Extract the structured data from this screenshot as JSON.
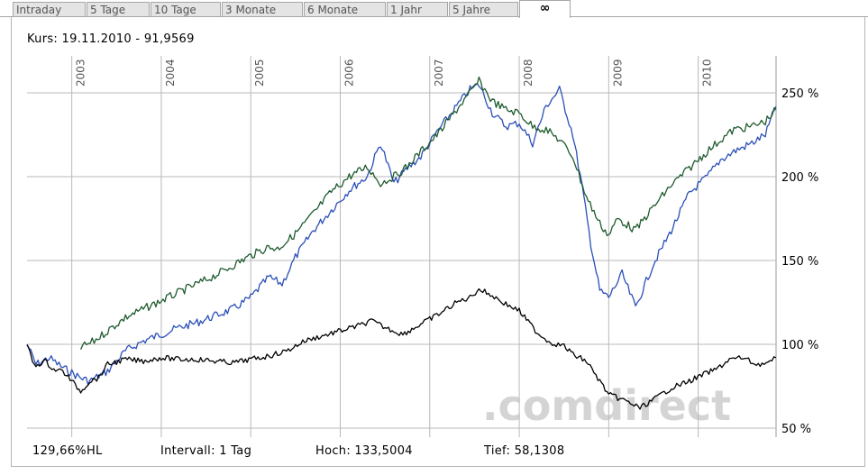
{
  "tabs": [
    {
      "label": "Intraday",
      "active": false
    },
    {
      "label": "5 Tage",
      "active": false
    },
    {
      "label": "10 Tage",
      "active": false
    },
    {
      "label": "3 Monate",
      "active": false
    },
    {
      "label": "6 Monate",
      "active": false
    },
    {
      "label": "1 Jahr",
      "active": false
    },
    {
      "label": "5 Jahre",
      "active": false
    },
    {
      "label": "∞",
      "active": true
    }
  ],
  "header": {
    "kurs": "Kurs: 19.11.2010 - 91,9569"
  },
  "footer": {
    "hl": "129,66%HL",
    "intervall": "Intervall: 1 Tag",
    "hoch": "Hoch: 133,5004",
    "tief": "Tief: 58,1308"
  },
  "watermark": ".comdirect",
  "colors": {
    "main": "#000000",
    "green": "#1e5a2e",
    "blue": "#2b4fb8",
    "grid": "#b9b9b9",
    "frame": "#b5b5b5"
  },
  "chart_data": {
    "type": "line",
    "x_tick_labels": [
      "2003",
      "2004",
      "2005",
      "2006",
      "2007",
      "2008",
      "2009",
      "2010"
    ],
    "y_tick_labels": [
      "250 %",
      "200 %",
      "150 %",
      "100 %",
      "50 %"
    ],
    "y_ticks": [
      250,
      200,
      150,
      100,
      50
    ],
    "ylim": [
      50,
      270
    ],
    "xlim": [
      2002.5,
      2010.87
    ],
    "grid": true,
    "series": [
      {
        "color": "#000000",
        "x": [
          2002.5,
          2002.58,
          2002.7,
          2002.8,
          2002.9,
          2003.0,
          2003.1,
          2003.2,
          2003.3,
          2003.4,
          2003.6,
          2003.8,
          2004.0,
          2004.2,
          2004.4,
          2004.6,
          2004.8,
          2005.0,
          2005.2,
          2005.4,
          2005.6,
          2005.8,
          2006.0,
          2006.2,
          2006.35,
          2006.5,
          2006.7,
          2006.9,
          2007.1,
          2007.3,
          2007.45,
          2007.55,
          2007.7,
          2007.85,
          2008.0,
          2008.2,
          2008.35,
          2008.5,
          2008.6,
          2008.75,
          2008.9,
          2009.0,
          2009.1,
          2009.2,
          2009.35,
          2009.5,
          2009.7,
          2009.9,
          2010.1,
          2010.2,
          2010.35,
          2010.5,
          2010.65,
          2010.8,
          2010.87
        ],
        "values": [
          100,
          87,
          90,
          85,
          84,
          78,
          72,
          78,
          80,
          88,
          91,
          90,
          92,
          91,
          91,
          90,
          89,
          91,
          93,
          96,
          102,
          105,
          108,
          111,
          114,
          110,
          106,
          112,
          118,
          125,
          128,
          133,
          129,
          124,
          120,
          107,
          101,
          99,
          94,
          90,
          78,
          70,
          68,
          66,
          62,
          67,
          74,
          78,
          83,
          85,
          91,
          92,
          88,
          89,
          92
        ]
      },
      {
        "color": "#1e5a2e",
        "x": [
          2003.1,
          2003.25,
          2003.4,
          2003.6,
          2003.8,
          2004.0,
          2004.2,
          2004.4,
          2004.6,
          2004.8,
          2005.0,
          2005.2,
          2005.3,
          2005.5,
          2005.7,
          2005.9,
          2006.1,
          2006.3,
          2006.45,
          2006.6,
          2006.75,
          2006.9,
          2007.1,
          2007.3,
          2007.45,
          2007.55,
          2007.7,
          2007.85,
          2008.0,
          2008.15,
          2008.3,
          2008.45,
          2008.6,
          2008.75,
          2008.9,
          2009.0,
          2009.1,
          2009.3,
          2009.5,
          2009.7,
          2009.9,
          2010.1,
          2010.25,
          2010.4,
          2010.6,
          2010.75,
          2010.87
        ],
        "values": [
          98,
          102,
          108,
          116,
          121,
          126,
          131,
          136,
          141,
          147,
          153,
          158,
          157,
          166,
          178,
          191,
          200,
          206,
          196,
          200,
          206,
          215,
          226,
          240,
          250,
          257,
          245,
          240,
          238,
          230,
          228,
          222,
          212,
          188,
          172,
          165,
          175,
          168,
          182,
          195,
          205,
          215,
          222,
          228,
          230,
          233,
          240
        ]
      },
      {
        "color": "#2b4fb8",
        "x": [
          2002.5,
          2002.6,
          2002.75,
          2002.9,
          2003.0,
          2003.1,
          2003.2,
          2003.4,
          2003.6,
          2003.8,
          2004.0,
          2004.2,
          2004.4,
          2004.6,
          2004.8,
          2005.0,
          2005.2,
          2005.35,
          2005.5,
          2005.7,
          2005.9,
          2006.1,
          2006.3,
          2006.45,
          2006.6,
          2006.75,
          2006.9,
          2007.1,
          2007.3,
          2007.45,
          2007.55,
          2007.7,
          2007.85,
          2008.0,
          2008.15,
          2008.3,
          2008.45,
          2008.6,
          2008.7,
          2008.8,
          2008.9,
          2009.0,
          2009.15,
          2009.3,
          2009.5,
          2009.7,
          2009.9,
          2010.1,
          2010.25,
          2010.4,
          2010.6,
          2010.75,
          2010.87
        ],
        "values": [
          100,
          88,
          92,
          86,
          83,
          80,
          78,
          84,
          96,
          102,
          106,
          110,
          113,
          117,
          121,
          128,
          140,
          136,
          152,
          168,
          180,
          192,
          200,
          220,
          196,
          205,
          212,
          228,
          242,
          252,
          255,
          238,
          230,
          232,
          220,
          242,
          252,
          225,
          195,
          160,
          132,
          128,
          142,
          122,
          148,
          168,
          190,
          200,
          210,
          215,
          220,
          225,
          242
        ]
      }
    ]
  }
}
